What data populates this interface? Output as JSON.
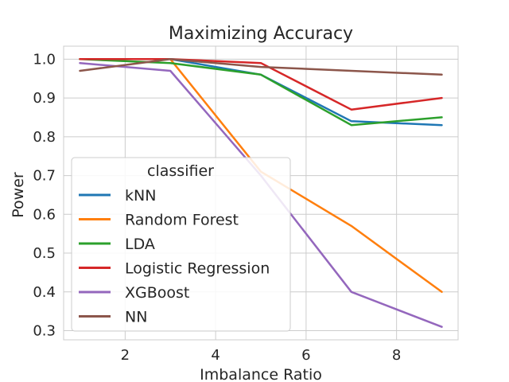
{
  "chart_data": {
    "type": "line",
    "title": "Maximizing Accuracy",
    "xlabel": "Imbalance Ratio",
    "ylabel": "Power",
    "xlim": [
      0.64,
      9.36
    ],
    "ylim": [
      0.2765,
      1.0335
    ],
    "xticks": [
      2,
      4,
      6,
      8
    ],
    "xtick_labels": [
      "2",
      "4",
      "6",
      "8"
    ],
    "yticks": [
      0.3,
      0.4,
      0.5,
      0.6,
      0.7,
      0.8,
      0.9,
      1.0
    ],
    "ytick_labels": [
      "0.3",
      "0.4",
      "0.5",
      "0.6",
      "0.7",
      "0.8",
      "0.9",
      "1.0"
    ],
    "grid": true,
    "legend": {
      "title": "classifier",
      "placement": "lower-left"
    },
    "x": [
      1,
      3,
      5,
      7,
      9
    ],
    "series": [
      {
        "name": "kNN",
        "color": "#1f77b4",
        "values": [
          1.0,
          1.0,
          0.96,
          0.84,
          0.83
        ]
      },
      {
        "name": "Random Forest",
        "color": "#ff7f0e",
        "values": [
          1.0,
          1.0,
          0.71,
          0.57,
          0.4
        ]
      },
      {
        "name": "LDA",
        "color": "#2ca02c",
        "values": [
          1.0,
          0.99,
          0.96,
          0.83,
          0.85
        ]
      },
      {
        "name": "Logistic Regression",
        "color": "#d62728",
        "values": [
          1.0,
          1.0,
          0.99,
          0.87,
          0.9
        ]
      },
      {
        "name": "XGBoost",
        "color": "#9467bd",
        "values": [
          0.99,
          0.97,
          0.7,
          0.4,
          0.31
        ]
      },
      {
        "name": "NN",
        "color": "#8c564b",
        "values": [
          0.97,
          1.0,
          0.98,
          0.97,
          0.96
        ]
      }
    ]
  }
}
